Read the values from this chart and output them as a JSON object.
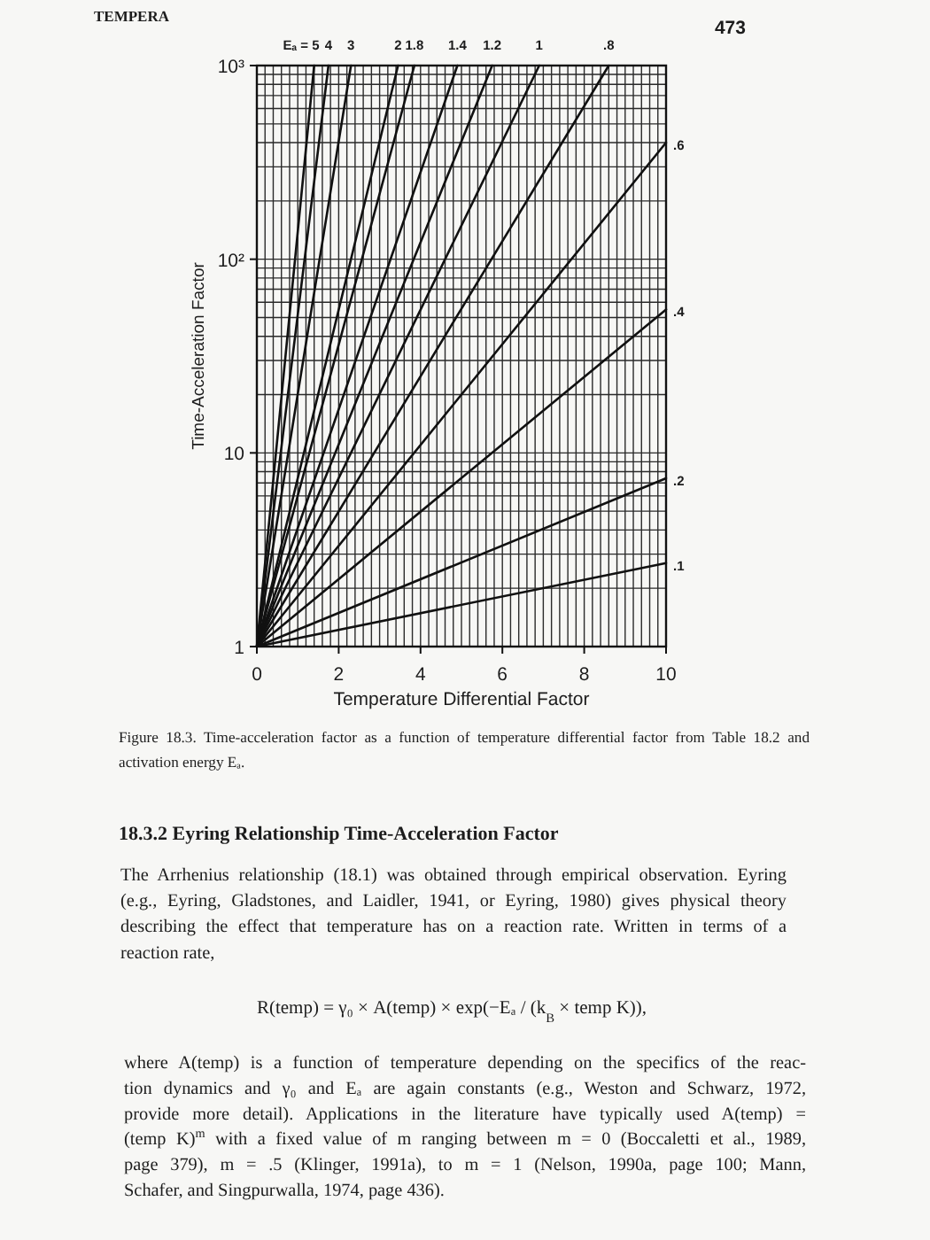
{
  "chart_data": {
    "type": "line",
    "xlabel": "Temperature Differential Factor",
    "ylabel": "Time-Acceleration Factor",
    "log": "y",
    "grid": true,
    "xlim": [
      0,
      10
    ],
    "ylim": [
      1,
      1000
    ],
    "xticks": [
      0,
      {
        "value": 0.2,
        "label": null
      },
      {
        "value": 0.4,
        "label": null
      },
      {
        "value": 0.6,
        "label": null
      },
      {
        "value": 0.8,
        "label": null
      },
      {
        "value": 1,
        "label": null
      },
      {
        "value": 1.2,
        "label": null
      },
      {
        "value": 1.4,
        "label": null
      },
      {
        "value": 1.6,
        "label": null
      },
      {
        "value": 1.8,
        "label": null
      },
      2,
      {
        "value": 2.2,
        "label": null
      },
      {
        "value": 2.4,
        "label": null
      },
      {
        "value": 2.6,
        "label": null
      },
      {
        "value": 2.8,
        "label": null
      },
      {
        "value": 3,
        "label": null
      },
      {
        "value": 3.2,
        "label": null
      },
      {
        "value": 3.4,
        "label": null
      },
      {
        "value": 3.6,
        "label": null
      },
      {
        "value": 3.8,
        "label": null
      },
      4,
      {
        "value": 4.2,
        "label": null
      },
      {
        "value": 4.4,
        "label": null
      },
      {
        "value": 4.6,
        "label": null
      },
      {
        "value": 4.8,
        "label": null
      },
      {
        "value": 5,
        "label": null
      },
      {
        "value": 5.2,
        "label": null
      },
      {
        "value": 5.4,
        "label": null
      },
      {
        "value": 5.6,
        "label": null
      },
      {
        "value": 5.8,
        "label": null
      },
      6,
      {
        "value": 6.2,
        "label": null
      },
      {
        "value": 6.4,
        "label": null
      },
      {
        "value": 6.6,
        "label": null
      },
      {
        "value": 6.8,
        "label": null
      },
      {
        "value": 7,
        "label": null
      },
      {
        "value": 7.2,
        "label": null
      },
      {
        "value": 7.4,
        "label": null
      },
      {
        "value": 7.6,
        "label": null
      },
      {
        "value": 7.8,
        "label": null
      },
      8,
      {
        "value": 8.2,
        "label": null
      },
      {
        "value": 8.4,
        "label": null
      },
      {
        "value": 8.6,
        "label": null
      },
      {
        "value": 8.8,
        "label": null
      },
      {
        "value": 9,
        "label": null
      },
      {
        "value": 9.2,
        "label": null
      },
      {
        "value": 9.4,
        "label": null
      },
      {
        "value": 9.6,
        "label": null
      },
      {
        "value": 9.8,
        "label": null
      },
      10
    ],
    "yticks": [
      1,
      {
        "value": 2,
        "label": null
      },
      {
        "value": 3,
        "label": null
      },
      {
        "value": 4,
        "label": null
      },
      {
        "value": 5,
        "label": null
      },
      {
        "value": 6,
        "label": null
      },
      {
        "value": 7,
        "label": null
      },
      {
        "value": 8,
        "label": null
      },
      {
        "value": 9,
        "label": null
      },
      10,
      {
        "value": 20,
        "label": null
      },
      {
        "value": 30,
        "label": null
      },
      {
        "value": 40,
        "label": null
      },
      {
        "value": 50,
        "label": null
      },
      {
        "value": 60,
        "label": null
      },
      {
        "value": 70,
        "label": null
      },
      {
        "value": 80,
        "label": null
      },
      {
        "value": 90,
        "label": null
      },
      {
        "value": 100,
        "label": "10²"
      },
      {
        "value": 200,
        "label": null
      },
      {
        "value": 300,
        "label": null
      },
      {
        "value": 400,
        "label": null
      },
      {
        "value": 500,
        "label": null
      },
      {
        "value": 600,
        "label": null
      },
      {
        "value": 700,
        "label": null
      },
      {
        "value": 800,
        "label": null
      },
      {
        "value": 900,
        "label": null
      },
      {
        "value": 1000,
        "label": "10³"
      }
    ],
    "series": [
      {
        "name": "Eₐ = 5",
        "color": "#111111",
        "x": [
          0,
          1.4
        ],
        "values": [
          1,
          1000
        ]
      },
      {
        "name": "4",
        "color": "#111111",
        "x": [
          0,
          1.75
        ],
        "values": [
          1,
          1000
        ]
      },
      {
        "name": "3",
        "color": "#111111",
        "x": [
          0,
          2.3
        ],
        "values": [
          1,
          1000
        ]
      },
      {
        "name": "2",
        "color": "#111111",
        "x": [
          0,
          3.45
        ],
        "values": [
          1,
          1000
        ]
      },
      {
        "name": "1.8",
        "color": "#111111",
        "x": [
          0,
          3.85
        ],
        "values": [
          1,
          1000
        ]
      },
      {
        "name": "1.4",
        "color": "#111111",
        "x": [
          0,
          4.9
        ],
        "values": [
          1,
          1000
        ]
      },
      {
        "name": "1.2",
        "color": "#111111",
        "x": [
          0,
          5.75
        ],
        "values": [
          1,
          1000
        ]
      },
      {
        "name": "1",
        "color": "#111111",
        "x": [
          0,
          6.9
        ],
        "values": [
          1,
          1000
        ]
      },
      {
        "name": ".8",
        "color": "#111111",
        "x": [
          0,
          8.6
        ],
        "values": [
          1,
          1000
        ]
      },
      {
        "name": ".6",
        "color": "#111111",
        "x": [
          0,
          10
        ],
        "values": [
          1,
          400
        ]
      },
      {
        "name": ".4",
        "color": "#111111",
        "x": [
          0,
          10
        ],
        "values": [
          1,
          55
        ]
      },
      {
        "name": ".2",
        "color": "#111111",
        "x": [
          0,
          10
        ],
        "values": [
          1,
          7.4
        ]
      },
      {
        "name": ".1",
        "color": "#111111",
        "x": [
          0,
          10
        ],
        "values": [
          1,
          2.7
        ]
      }
    ],
    "annotations": [
      "TEMPERA",
      "473",
      "Figure 18.3. Time-acceleration factor as a function of temperature differential factor from Table 18.2 and\nactivation energy Eₐ.",
      "18.3.2 Eyring Relationship Time-Acceleration Factor",
      "The Arrhenius relationship (18.1) was obtained through empirical observation. Eyring\n(e.g., Eyring, Gladstones, and Laidler, 1941, or Eyring, 1980) gives physical theory\ndescribing the effect that temperature has on a reaction rate. Written in terms of a\nreaction rate,",
      "R(temp) = γ₀ × A(temp) × exp(−Eₐ / (k$_{B}$ × temp K)),",
      "where A(temp) is a function of temperature depending on the specifics of the reac-\ntion dynamics and γ₀ and Eₐ are again constants (e.g., Weston and Schwarz, 1972,\nprovide more detail). Applications in the literature have typically used A(temp) =\n(temp K)$^{m}$ with a fixed value of m ranging between m = 0 (Boccaletti et al., 1989,\npage 379), m = .5 (Klinger, 1991a), to m = 1 (Nelson, 1990a, page 100; Mann,\nSchafer, and Singpurwalla, 1974, page 436)."
    ]
  }
}
